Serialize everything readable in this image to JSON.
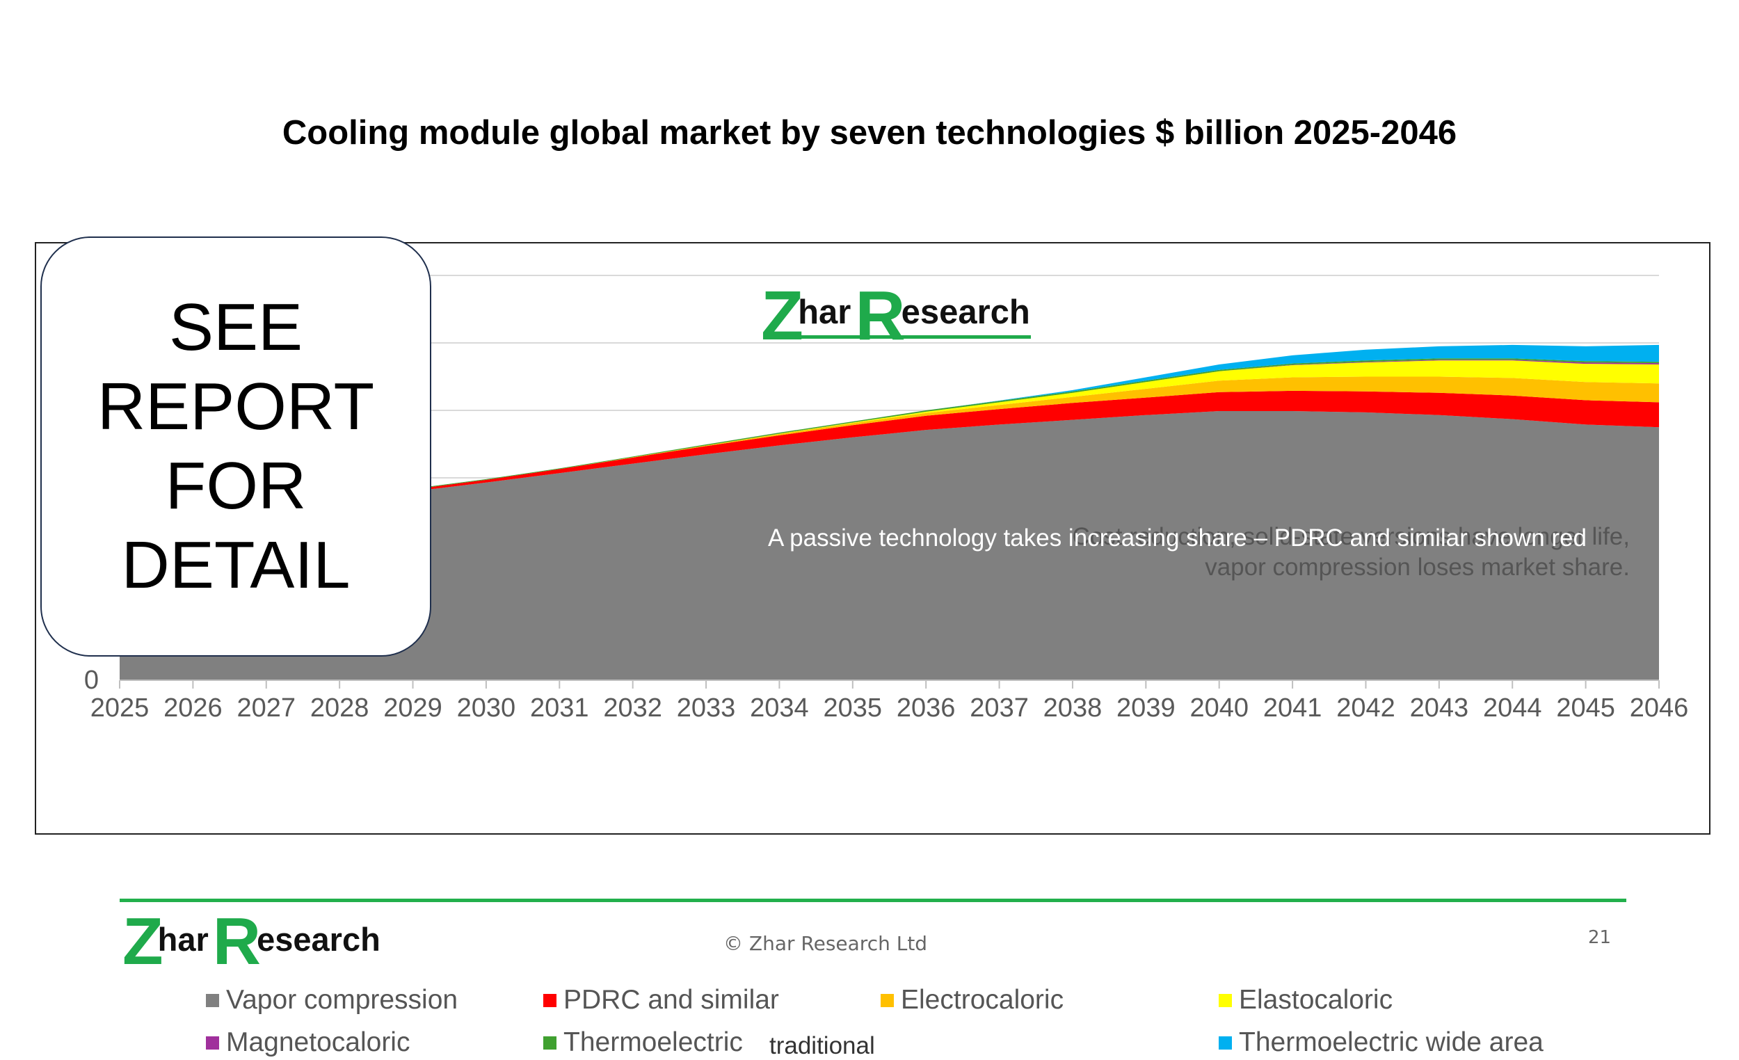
{
  "slide": {
    "title": "Cooling module global market by seven technologies $ billion 2025-2046",
    "copyright": "© Zhar Research Ltd",
    "page_number": "21"
  },
  "overlay": {
    "lines": [
      "SEE",
      "REPORT",
      "FOR",
      "DETAIL"
    ]
  },
  "logo": {
    "first": "Z",
    "first_rest": "har",
    "second": "R",
    "second_rest": "esearch"
  },
  "annotations": {
    "top_line1": "Cost reduction, solid-state versions have longer life,",
    "top_line2": "vapor compression loses market share.",
    "middle": "A passive technology takes increasing share – PDRC and similar shown red"
  },
  "legend_extra": "traditional",
  "colors": {
    "vapor": "#808080",
    "pdrc": "#ff0000",
    "electrocaloric": "#ffc000",
    "elastocaloric": "#ffff00",
    "magnetocaloric": "#a0309c",
    "thermoelectric": "#40a030",
    "thermoelectric_wide": "#00b0f0",
    "logo_green": "#1faa4b",
    "footer_line": "#22b04c"
  },
  "chart_data": {
    "type": "area",
    "stacked": true,
    "x": [
      2025,
      2026,
      2027,
      2028,
      2029,
      2030,
      2031,
      2032,
      2033,
      2034,
      2035,
      2036,
      2037,
      2038,
      2039,
      2040,
      2041,
      2042,
      2043,
      2044,
      2045,
      2046
    ],
    "y_tick_labels": [
      "0"
    ],
    "ylim": [
      0,
      6
    ],
    "grid": true,
    "legend_position": "bottom",
    "series": [
      {
        "name": "Vapor compression",
        "color": "#808080",
        "values": [
          2.02,
          2.3,
          2.52,
          2.68,
          2.8,
          2.93,
          3.07,
          3.21,
          3.35,
          3.48,
          3.6,
          3.71,
          3.79,
          3.86,
          3.93,
          3.99,
          3.99,
          3.97,
          3.93,
          3.87,
          3.79,
          3.75
        ]
      },
      {
        "name": "PDRC and similar",
        "color": "#ff0000",
        "values": [
          0.005,
          0.01,
          0.015,
          0.02,
          0.03,
          0.04,
          0.06,
          0.09,
          0.12,
          0.15,
          0.18,
          0.21,
          0.23,
          0.25,
          0.26,
          0.28,
          0.3,
          0.31,
          0.33,
          0.35,
          0.36,
          0.37
        ]
      },
      {
        "name": "Electrocaloric",
        "color": "#ffc000",
        "values": [
          0,
          0,
          0,
          0,
          0,
          0,
          0,
          0.005,
          0.01,
          0.02,
          0.03,
          0.04,
          0.06,
          0.09,
          0.13,
          0.17,
          0.2,
          0.22,
          0.24,
          0.26,
          0.27,
          0.28
        ]
      },
      {
        "name": "Elastocaloric",
        "color": "#ffff00",
        "values": [
          0,
          0,
          0,
          0,
          0,
          0,
          0,
          0,
          0,
          0.005,
          0.01,
          0.02,
          0.04,
          0.06,
          0.1,
          0.14,
          0.18,
          0.21,
          0.24,
          0.26,
          0.27,
          0.28
        ]
      },
      {
        "name": "Magnetocaloric",
        "color": "#a0309c",
        "values": [
          0,
          0,
          0,
          0,
          0,
          0,
          0,
          0,
          0,
          0,
          0,
          0,
          0,
          0,
          0,
          0,
          0.005,
          0.01,
          0.01,
          0.01,
          0.02,
          0.02
        ]
      },
      {
        "name": "Thermoelectric",
        "color": "#40a030",
        "values": [
          0.005,
          0.005,
          0.005,
          0.01,
          0.01,
          0.01,
          0.01,
          0.01,
          0.015,
          0.015,
          0.015,
          0.02,
          0.02,
          0.02,
          0.02,
          0.02,
          0.02,
          0.02,
          0.02,
          0.02,
          0.02,
          0.02
        ]
      },
      {
        "name": "Thermoelectric wide area",
        "color": "#00b0f0",
        "values": [
          0,
          0,
          0,
          0,
          0,
          0,
          0,
          0,
          0,
          0,
          0,
          0,
          0.005,
          0.02,
          0.05,
          0.08,
          0.12,
          0.16,
          0.18,
          0.2,
          0.22,
          0.25
        ]
      }
    ]
  }
}
